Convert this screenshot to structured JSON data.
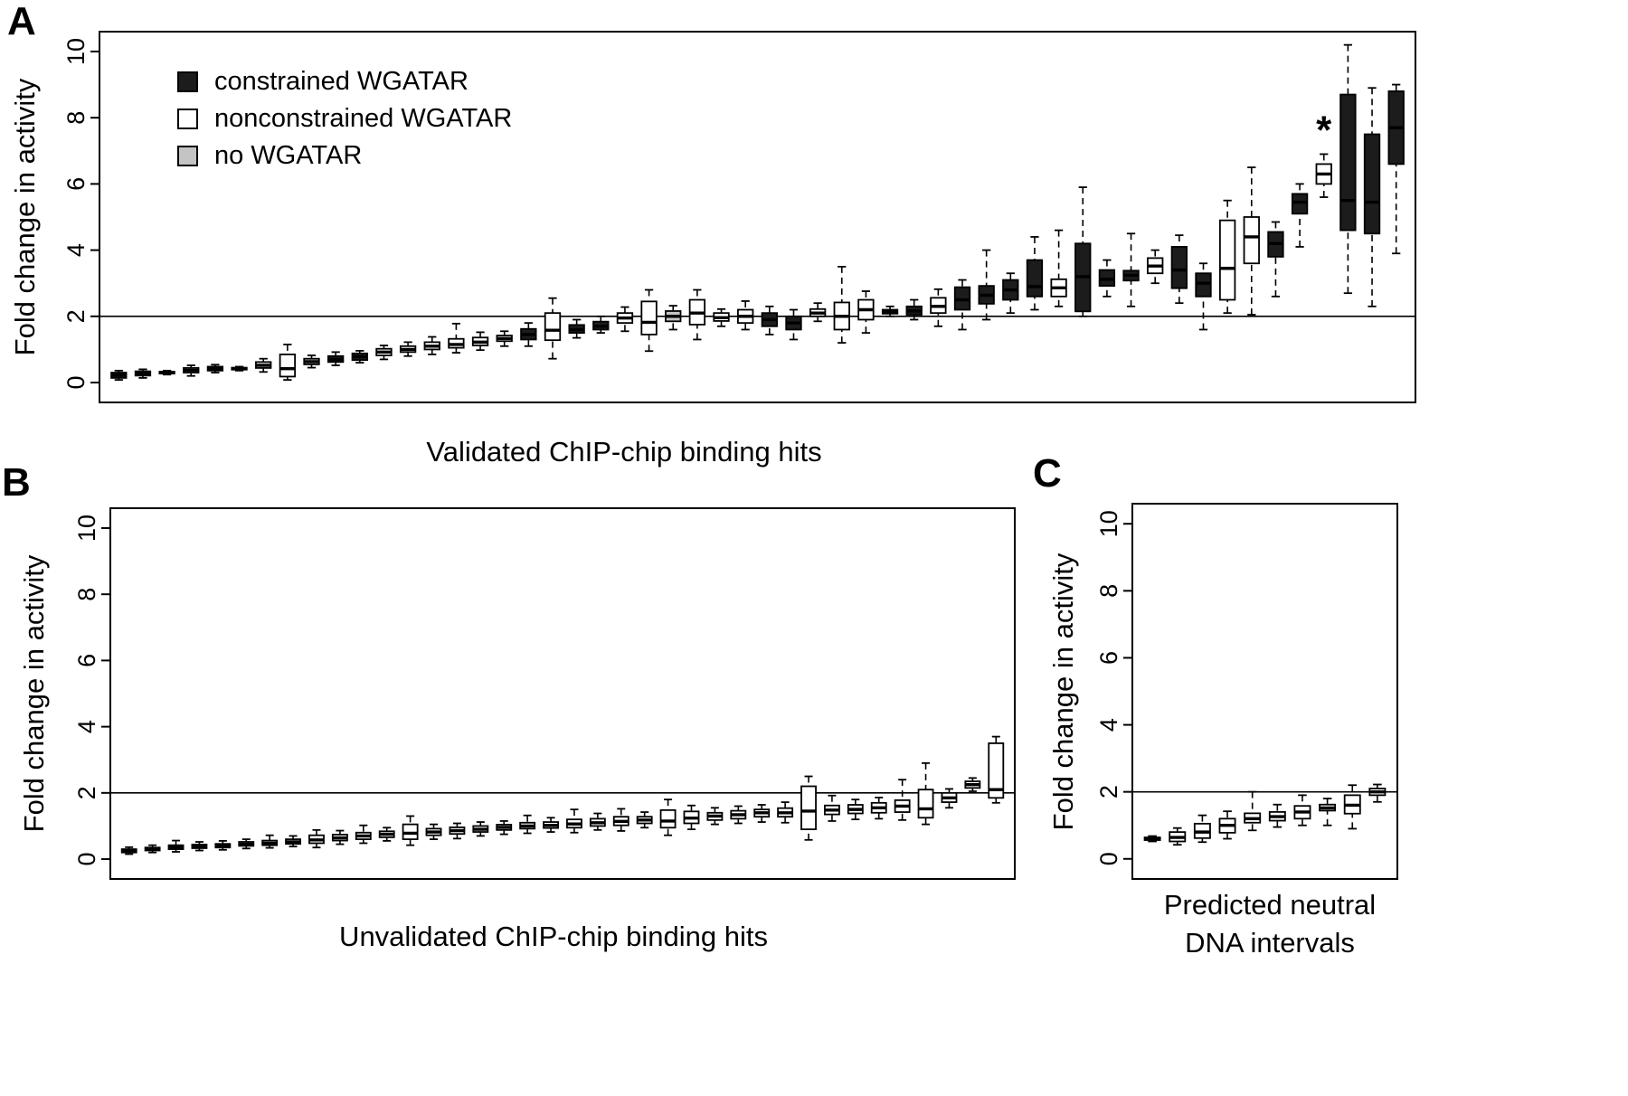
{
  "figure": {
    "panels": [
      {
        "letter": "A",
        "xlabel": "Validated ChIP-chip binding hits",
        "ylabel": "Fold change in activity"
      },
      {
        "letter": "B",
        "xlabel": "Unvalidated ChIP-chip binding hits",
        "ylabel": "Fold change in activity"
      },
      {
        "letter": "C",
        "xlabel_lines": [
          "Predicted neutral",
          "DNA intervals"
        ],
        "ylabel": "Fold change in activity"
      }
    ]
  },
  "legend": {
    "items": [
      {
        "label": "constrained WGATAR",
        "color": "#1c1c1c"
      },
      {
        "label": "nonconstrained WGATAR",
        "color": "#ffffff"
      },
      {
        "label": "no WGATAR",
        "color": "#c4c4c4"
      }
    ]
  },
  "colors": {
    "black": "#1c1c1c",
    "white": "#ffffff",
    "gray": "#c4c4c4",
    "axis": "#000000"
  },
  "annotation_symbol": "*",
  "chart_data": [
    {
      "type": "boxplot",
      "panel": "A",
      "title": "Validated ChIP-chip binding hits",
      "xlabel": "Validated ChIP-chip binding hits",
      "ylabel": "Fold change in activity",
      "ylim": [
        0,
        10
      ],
      "yticks": [
        0,
        2,
        4,
        6,
        8,
        10
      ],
      "reference_line": 2,
      "grid": false,
      "legend_position": "top-left",
      "groups": {
        "black": "constrained WGATAR",
        "white": "nonconstrained WGATAR",
        "gray": "no WGATAR"
      },
      "boxes": [
        {
          "fill": "black",
          "lo": 0.08,
          "q1": 0.14,
          "med": 0.22,
          "q3": 0.3,
          "hi": 0.36
        },
        {
          "fill": "white",
          "lo": 0.14,
          "q1": 0.21,
          "med": 0.27,
          "q3": 0.34,
          "hi": 0.4
        },
        {
          "fill": "black",
          "lo": 0.24,
          "q1": 0.27,
          "med": 0.3,
          "q3": 0.33,
          "hi": 0.36
        },
        {
          "fill": "white",
          "lo": 0.2,
          "q1": 0.3,
          "med": 0.37,
          "q3": 0.44,
          "hi": 0.52
        },
        {
          "fill": "white",
          "lo": 0.3,
          "q1": 0.36,
          "med": 0.42,
          "q3": 0.48,
          "hi": 0.54
        },
        {
          "fill": "black",
          "lo": 0.36,
          "q1": 0.39,
          "med": 0.42,
          "q3": 0.45,
          "hi": 0.48
        },
        {
          "fill": "white",
          "lo": 0.32,
          "q1": 0.44,
          "med": 0.52,
          "q3": 0.62,
          "hi": 0.72
        },
        {
          "fill": "white",
          "lo": 0.08,
          "q1": 0.18,
          "med": 0.42,
          "q3": 0.85,
          "hi": 1.15
        },
        {
          "fill": "gray",
          "lo": 0.45,
          "q1": 0.55,
          "med": 0.63,
          "q3": 0.72,
          "hi": 0.82
        },
        {
          "fill": "black",
          "lo": 0.52,
          "q1": 0.62,
          "med": 0.7,
          "q3": 0.8,
          "hi": 0.92
        },
        {
          "fill": "black",
          "lo": 0.6,
          "q1": 0.68,
          "med": 0.78,
          "q3": 0.88,
          "hi": 0.96
        },
        {
          "fill": "white",
          "lo": 0.7,
          "q1": 0.82,
          "med": 0.92,
          "q3": 1.02,
          "hi": 1.12
        },
        {
          "fill": "white",
          "lo": 0.8,
          "q1": 0.92,
          "med": 1.0,
          "q3": 1.1,
          "hi": 1.22
        },
        {
          "fill": "white",
          "lo": 0.85,
          "q1": 1.0,
          "med": 1.1,
          "q3": 1.22,
          "hi": 1.38
        },
        {
          "fill": "white",
          "lo": 0.9,
          "q1": 1.05,
          "med": 1.15,
          "q3": 1.32,
          "hi": 1.78
        },
        {
          "fill": "white",
          "lo": 0.98,
          "q1": 1.12,
          "med": 1.22,
          "q3": 1.36,
          "hi": 1.52
        },
        {
          "fill": "white",
          "lo": 1.1,
          "q1": 1.25,
          "med": 1.33,
          "q3": 1.42,
          "hi": 1.55
        },
        {
          "fill": "black",
          "lo": 1.1,
          "q1": 1.3,
          "med": 1.45,
          "q3": 1.62,
          "hi": 1.8
        },
        {
          "fill": "white",
          "lo": 0.72,
          "q1": 1.28,
          "med": 1.58,
          "q3": 2.1,
          "hi": 2.55
        },
        {
          "fill": "black",
          "lo": 1.35,
          "q1": 1.5,
          "med": 1.6,
          "q3": 1.74,
          "hi": 1.9
        },
        {
          "fill": "black",
          "lo": 1.5,
          "q1": 1.6,
          "med": 1.7,
          "q3": 1.84,
          "hi": 2.0
        },
        {
          "fill": "white",
          "lo": 1.55,
          "q1": 1.8,
          "med": 1.95,
          "q3": 2.1,
          "hi": 2.28
        },
        {
          "fill": "white",
          "lo": 0.95,
          "q1": 1.45,
          "med": 1.82,
          "q3": 2.45,
          "hi": 2.8
        },
        {
          "fill": "gray",
          "lo": 1.6,
          "q1": 1.85,
          "med": 2.0,
          "q3": 2.16,
          "hi": 2.32
        },
        {
          "fill": "white",
          "lo": 1.3,
          "q1": 1.75,
          "med": 2.1,
          "q3": 2.5,
          "hi": 2.8
        },
        {
          "fill": "white",
          "lo": 1.7,
          "q1": 1.86,
          "med": 1.96,
          "q3": 2.1,
          "hi": 2.22
        },
        {
          "fill": "white",
          "lo": 1.6,
          "q1": 1.8,
          "med": 2.0,
          "q3": 2.2,
          "hi": 2.46
        },
        {
          "fill": "black",
          "lo": 1.45,
          "q1": 1.7,
          "med": 1.9,
          "q3": 2.1,
          "hi": 2.3
        },
        {
          "fill": "black",
          "lo": 1.3,
          "q1": 1.6,
          "med": 1.8,
          "q3": 2.0,
          "hi": 2.2
        },
        {
          "fill": "white",
          "lo": 1.85,
          "q1": 2.0,
          "med": 2.1,
          "q3": 2.22,
          "hi": 2.4
        },
        {
          "fill": "white",
          "lo": 1.2,
          "q1": 1.6,
          "med": 2.0,
          "q3": 2.42,
          "hi": 3.5
        },
        {
          "fill": "white",
          "lo": 1.5,
          "q1": 1.9,
          "med": 2.2,
          "q3": 2.5,
          "hi": 2.76
        },
        {
          "fill": "black",
          "lo": 2.0,
          "q1": 2.08,
          "med": 2.14,
          "q3": 2.2,
          "hi": 2.3
        },
        {
          "fill": "black",
          "lo": 1.9,
          "q1": 2.05,
          "med": 2.16,
          "q3": 2.3,
          "hi": 2.5
        },
        {
          "fill": "white",
          "lo": 1.7,
          "q1": 2.1,
          "med": 2.3,
          "q3": 2.56,
          "hi": 2.82
        },
        {
          "fill": "black",
          "lo": 1.6,
          "q1": 2.2,
          "med": 2.5,
          "q3": 2.88,
          "hi": 3.1
        },
        {
          "fill": "black",
          "lo": 1.9,
          "q1": 2.38,
          "med": 2.64,
          "q3": 2.92,
          "hi": 4.0
        },
        {
          "fill": "black",
          "lo": 2.1,
          "q1": 2.5,
          "med": 2.8,
          "q3": 3.1,
          "hi": 3.3
        },
        {
          "fill": "black",
          "lo": 2.2,
          "q1": 2.6,
          "med": 2.9,
          "q3": 3.7,
          "hi": 4.4
        },
        {
          "fill": "white",
          "lo": 2.3,
          "q1": 2.6,
          "med": 2.86,
          "q3": 3.12,
          "hi": 4.6
        },
        {
          "fill": "black",
          "lo": 2.0,
          "q1": 2.15,
          "med": 3.2,
          "q3": 4.2,
          "hi": 5.9
        },
        {
          "fill": "black",
          "lo": 2.6,
          "q1": 2.92,
          "med": 3.12,
          "q3": 3.4,
          "hi": 3.7
        },
        {
          "fill": "black",
          "lo": 2.3,
          "q1": 3.08,
          "med": 3.24,
          "q3": 3.38,
          "hi": 4.5
        },
        {
          "fill": "white",
          "lo": 3.0,
          "q1": 3.3,
          "med": 3.52,
          "q3": 3.76,
          "hi": 4.0
        },
        {
          "fill": "black",
          "lo": 2.4,
          "q1": 2.85,
          "med": 3.4,
          "q3": 4.1,
          "hi": 4.45
        },
        {
          "fill": "black",
          "lo": 1.6,
          "q1": 2.6,
          "med": 3.0,
          "q3": 3.3,
          "hi": 3.6
        },
        {
          "fill": "white",
          "lo": 2.1,
          "q1": 2.5,
          "med": 3.45,
          "q3": 4.9,
          "hi": 5.5
        },
        {
          "fill": "white",
          "lo": 2.05,
          "q1": 3.6,
          "med": 4.4,
          "q3": 5.0,
          "hi": 6.5
        },
        {
          "fill": "black",
          "lo": 2.6,
          "q1": 3.8,
          "med": 4.2,
          "q3": 4.55,
          "hi": 4.85
        },
        {
          "fill": "black",
          "lo": 4.1,
          "q1": 5.1,
          "med": 5.45,
          "q3": 5.7,
          "hi": 6.0
        },
        {
          "fill": "white",
          "lo": 5.6,
          "q1": 6.0,
          "med": 6.3,
          "q3": 6.6,
          "hi": 6.9,
          "star": true
        },
        {
          "fill": "black",
          "lo": 2.7,
          "q1": 4.6,
          "med": 5.5,
          "q3": 8.7,
          "hi": 10.2
        },
        {
          "fill": "black",
          "lo": 2.3,
          "q1": 4.5,
          "med": 5.45,
          "q3": 7.5,
          "hi": 8.9
        },
        {
          "fill": "black",
          "lo": 3.9,
          "q1": 6.6,
          "med": 7.7,
          "q3": 8.8,
          "hi": 9.0
        }
      ]
    },
    {
      "type": "boxplot",
      "panel": "B",
      "title": "Unvalidated ChIP-chip binding hits",
      "xlabel": "Unvalidated ChIP-chip binding hits",
      "ylabel": "Fold change in activity",
      "ylim": [
        0,
        10
      ],
      "yticks": [
        0,
        2,
        4,
        6,
        8,
        10
      ],
      "reference_line": 2,
      "grid": false,
      "boxes": [
        {
          "fill": "white",
          "lo": 0.15,
          "q1": 0.2,
          "med": 0.25,
          "q3": 0.3,
          "hi": 0.36
        },
        {
          "fill": "white",
          "lo": 0.2,
          "q1": 0.26,
          "med": 0.3,
          "q3": 0.35,
          "hi": 0.42
        },
        {
          "fill": "white",
          "lo": 0.22,
          "q1": 0.3,
          "med": 0.35,
          "q3": 0.42,
          "hi": 0.56
        },
        {
          "fill": "white",
          "lo": 0.26,
          "q1": 0.33,
          "med": 0.38,
          "q3": 0.44,
          "hi": 0.52
        },
        {
          "fill": "white",
          "lo": 0.28,
          "q1": 0.35,
          "med": 0.4,
          "q3": 0.46,
          "hi": 0.55
        },
        {
          "fill": "white",
          "lo": 0.32,
          "q1": 0.4,
          "med": 0.45,
          "q3": 0.52,
          "hi": 0.6
        },
        {
          "fill": "white",
          "lo": 0.34,
          "q1": 0.42,
          "med": 0.48,
          "q3": 0.56,
          "hi": 0.72
        },
        {
          "fill": "white",
          "lo": 0.38,
          "q1": 0.46,
          "med": 0.52,
          "q3": 0.6,
          "hi": 0.7
        },
        {
          "fill": "white",
          "lo": 0.35,
          "q1": 0.48,
          "med": 0.58,
          "q3": 0.72,
          "hi": 0.88
        },
        {
          "fill": "white",
          "lo": 0.45,
          "q1": 0.56,
          "med": 0.64,
          "q3": 0.74,
          "hi": 0.86
        },
        {
          "fill": "white",
          "lo": 0.48,
          "q1": 0.6,
          "med": 0.7,
          "q3": 0.8,
          "hi": 1.02
        },
        {
          "fill": "white",
          "lo": 0.55,
          "q1": 0.66,
          "med": 0.75,
          "q3": 0.84,
          "hi": 0.95
        },
        {
          "fill": "white",
          "lo": 0.42,
          "q1": 0.6,
          "med": 0.78,
          "q3": 1.05,
          "hi": 1.3
        },
        {
          "fill": "white",
          "lo": 0.6,
          "q1": 0.72,
          "med": 0.82,
          "q3": 0.92,
          "hi": 1.05
        },
        {
          "fill": "white",
          "lo": 0.62,
          "q1": 0.76,
          "med": 0.86,
          "q3": 0.96,
          "hi": 1.08
        },
        {
          "fill": "white",
          "lo": 0.7,
          "q1": 0.82,
          "med": 0.9,
          "q3": 1.0,
          "hi": 1.12
        },
        {
          "fill": "white",
          "lo": 0.75,
          "q1": 0.88,
          "med": 0.96,
          "q3": 1.04,
          "hi": 1.15
        },
        {
          "fill": "white",
          "lo": 0.78,
          "q1": 0.92,
          "med": 1.0,
          "q3": 1.1,
          "hi": 1.32
        },
        {
          "fill": "white",
          "lo": 0.82,
          "q1": 0.94,
          "med": 1.02,
          "q3": 1.12,
          "hi": 1.25
        },
        {
          "fill": "white",
          "lo": 0.8,
          "q1": 0.95,
          "med": 1.06,
          "q3": 1.2,
          "hi": 1.5
        },
        {
          "fill": "white",
          "lo": 0.88,
          "q1": 1.0,
          "med": 1.1,
          "q3": 1.22,
          "hi": 1.38
        },
        {
          "fill": "white",
          "lo": 0.85,
          "q1": 1.02,
          "med": 1.14,
          "q3": 1.28,
          "hi": 1.52
        },
        {
          "fill": "white",
          "lo": 0.95,
          "q1": 1.08,
          "med": 1.18,
          "q3": 1.28,
          "hi": 1.42
        },
        {
          "fill": "white",
          "lo": 0.72,
          "q1": 0.95,
          "med": 1.15,
          "q3": 1.48,
          "hi": 1.8
        },
        {
          "fill": "white",
          "lo": 0.9,
          "q1": 1.08,
          "med": 1.24,
          "q3": 1.44,
          "hi": 1.62
        },
        {
          "fill": "white",
          "lo": 1.05,
          "q1": 1.18,
          "med": 1.3,
          "q3": 1.4,
          "hi": 1.55
        },
        {
          "fill": "white",
          "lo": 1.08,
          "q1": 1.22,
          "med": 1.34,
          "q3": 1.46,
          "hi": 1.6
        },
        {
          "fill": "white",
          "lo": 1.12,
          "q1": 1.28,
          "med": 1.4,
          "q3": 1.5,
          "hi": 1.64
        },
        {
          "fill": "white",
          "lo": 1.1,
          "q1": 1.28,
          "med": 1.4,
          "q3": 1.54,
          "hi": 1.72
        },
        {
          "fill": "white",
          "lo": 0.58,
          "q1": 0.9,
          "med": 1.45,
          "q3": 2.2,
          "hi": 2.5
        },
        {
          "fill": "white",
          "lo": 1.15,
          "q1": 1.35,
          "med": 1.48,
          "q3": 1.62,
          "hi": 1.92
        },
        {
          "fill": "white",
          "lo": 1.2,
          "q1": 1.38,
          "med": 1.5,
          "q3": 1.64,
          "hi": 1.8
        },
        {
          "fill": "white",
          "lo": 1.22,
          "q1": 1.4,
          "med": 1.55,
          "q3": 1.7,
          "hi": 1.86
        },
        {
          "fill": "white",
          "lo": 1.18,
          "q1": 1.42,
          "med": 1.6,
          "q3": 1.78,
          "hi": 2.4
        },
        {
          "fill": "white",
          "lo": 1.05,
          "q1": 1.25,
          "med": 1.52,
          "q3": 2.1,
          "hi": 2.9
        },
        {
          "fill": "white",
          "lo": 1.55,
          "q1": 1.72,
          "med": 1.85,
          "q3": 2.0,
          "hi": 2.12
        },
        {
          "fill": "white",
          "lo": 2.05,
          "q1": 2.15,
          "med": 2.25,
          "q3": 2.35,
          "hi": 2.45
        },
        {
          "fill": "white",
          "lo": 1.7,
          "q1": 1.85,
          "med": 2.1,
          "q3": 3.5,
          "hi": 3.7
        }
      ]
    },
    {
      "type": "boxplot",
      "panel": "C",
      "title": "Predicted neutral DNA intervals",
      "xlabel": "Predicted neutral DNA intervals",
      "ylabel": "Fold change in activity",
      "ylim": [
        0,
        10
      ],
      "yticks": [
        0,
        2,
        4,
        6,
        8,
        10
      ],
      "reference_line": 2,
      "grid": false,
      "boxes": [
        {
          "fill": "white",
          "lo": 0.52,
          "q1": 0.56,
          "med": 0.6,
          "q3": 0.64,
          "hi": 0.68
        },
        {
          "fill": "white",
          "lo": 0.42,
          "q1": 0.52,
          "med": 0.64,
          "q3": 0.8,
          "hi": 0.92
        },
        {
          "fill": "white",
          "lo": 0.5,
          "q1": 0.62,
          "med": 0.8,
          "q3": 1.05,
          "hi": 1.3
        },
        {
          "fill": "white",
          "lo": 0.6,
          "q1": 0.78,
          "med": 1.0,
          "q3": 1.2,
          "hi": 1.42
        },
        {
          "fill": "white",
          "lo": 0.85,
          "q1": 1.08,
          "med": 1.2,
          "q3": 1.36,
          "hi": 2.0
        },
        {
          "fill": "white",
          "lo": 0.95,
          "q1": 1.14,
          "med": 1.26,
          "q3": 1.4,
          "hi": 1.62
        },
        {
          "fill": "white",
          "lo": 1.0,
          "q1": 1.2,
          "med": 1.4,
          "q3": 1.58,
          "hi": 1.9
        },
        {
          "fill": "white",
          "lo": 1.0,
          "q1": 1.44,
          "med": 1.52,
          "q3": 1.62,
          "hi": 1.8
        },
        {
          "fill": "white",
          "lo": 0.9,
          "q1": 1.35,
          "med": 1.6,
          "q3": 1.9,
          "hi": 2.2
        },
        {
          "fill": "white",
          "lo": 1.7,
          "q1": 1.9,
          "med": 2.0,
          "q3": 2.1,
          "hi": 2.22
        }
      ]
    }
  ]
}
